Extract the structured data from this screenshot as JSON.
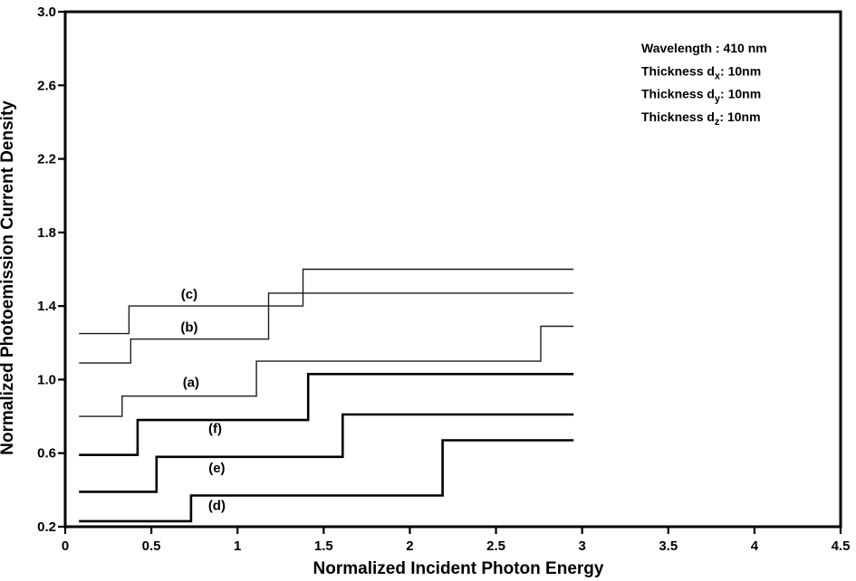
{
  "figure": {
    "background": "#ffffff",
    "axis_color": "#000000",
    "thin_line_color": "#1c1c1c",
    "thick_line_color": "#000000"
  },
  "chart_data": {
    "type": "line",
    "subtype": "step",
    "title": "",
    "xlabel": "Normalized Incident Photon Energy",
    "ylabel": "Normalized Photoemission Current Density",
    "xlim": [
      0,
      4.5
    ],
    "ylim": [
      0.2,
      3.0
    ],
    "grid": false,
    "legend_position": "none",
    "xticks": [
      "0",
      "0.5",
      "1",
      "1.5",
      "2",
      "2.5",
      "3",
      "3.5",
      "4",
      "4.5"
    ],
    "yticks": [
      "0.2",
      "0.6",
      "1.0",
      "1.4",
      "1.8",
      "2.2",
      "2.6",
      "3.0"
    ],
    "series": [
      {
        "name": "(a)",
        "weight": "thin",
        "x": [
          0.08,
          0.33,
          0.33,
          1.11,
          1.11,
          2.76,
          2.76,
          2.95
        ],
        "y": [
          0.8,
          0.8,
          0.91,
          0.91,
          1.1,
          1.1,
          1.29,
          1.29
        ],
        "label": "(a)",
        "label_x": 0.73,
        "label_y": 0.985
      },
      {
        "name": "(b)",
        "weight": "thin",
        "x": [
          0.08,
          0.38,
          0.38,
          1.18,
          1.18,
          2.95
        ],
        "y": [
          1.09,
          1.09,
          1.22,
          1.22,
          1.47,
          1.47
        ],
        "label": "(b)",
        "label_x": 0.72,
        "label_y": 1.285
      },
      {
        "name": "(c)",
        "weight": "thin",
        "x": [
          0.08,
          0.37,
          0.37,
          1.38,
          1.38,
          2.95
        ],
        "y": [
          1.25,
          1.25,
          1.4,
          1.4,
          1.6,
          1.6
        ],
        "label": "(c)",
        "label_x": 0.72,
        "label_y": 1.465
      },
      {
        "name": "(d)",
        "weight": "thick",
        "x": [
          0.08,
          0.73,
          0.73,
          2.19,
          2.19,
          2.95
        ],
        "y": [
          0.23,
          0.23,
          0.37,
          0.37,
          0.67,
          0.67
        ],
        "label": "(d)",
        "label_x": 0.88,
        "label_y": 0.315
      },
      {
        "name": "(e)",
        "weight": "thick",
        "x": [
          0.08,
          0.53,
          0.53,
          1.61,
          1.61,
          2.95
        ],
        "y": [
          0.39,
          0.39,
          0.58,
          0.58,
          0.81,
          0.81
        ],
        "label": "(e)",
        "label_x": 0.88,
        "label_y": 0.52
      },
      {
        "name": "(f)",
        "weight": "thick",
        "x": [
          0.08,
          0.42,
          0.42,
          1.41,
          1.41,
          2.95
        ],
        "y": [
          0.59,
          0.59,
          0.78,
          0.78,
          1.03,
          1.03
        ],
        "label": "(f)",
        "label_x": 0.87,
        "label_y": 0.735
      }
    ],
    "annotation": {
      "lines": [
        {
          "pre": "Wavelength :  410 nm",
          "sub": "",
          "post": ""
        },
        {
          "pre": "Thickness d",
          "sub": "x",
          "post": ": 10nm"
        },
        {
          "pre": "Thickness d",
          "sub": "y",
          "post": ": 10nm"
        },
        {
          "pre": "Thickness d",
          "sub": "z",
          "post": ": 10nm"
        }
      ]
    }
  }
}
